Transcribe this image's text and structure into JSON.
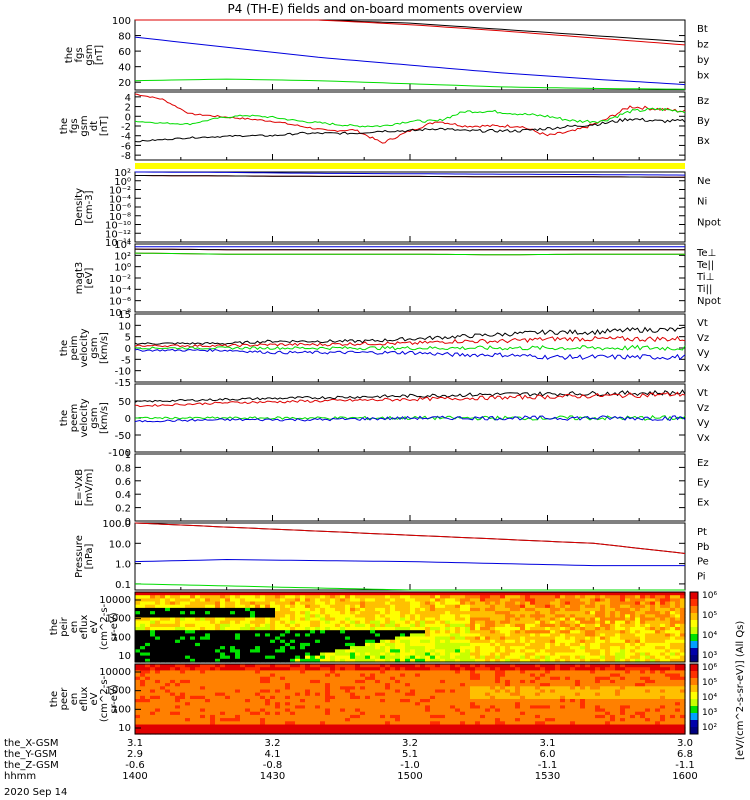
{
  "title": "P4 (TH-E) fields and on-board moments overview",
  "date_label": "2020 Sep 14",
  "colors": {
    "black": "#000000",
    "red": "#dd0000",
    "green": "#00dd00",
    "blue": "#0000dd",
    "yellow": "#ffff00"
  },
  "chart_data": [
    {
      "type": "line",
      "id": "fgs_total",
      "ylabel": [
        "the",
        "fgs",
        "gsm",
        "[nT]"
      ],
      "ylim": [
        10,
        100
      ],
      "yticks": [
        20,
        40,
        60,
        80,
        100
      ],
      "x": [
        0,
        10,
        20,
        30,
        40,
        50,
        60
      ],
      "series": [
        {
          "name": "Bt",
          "color": "#000000",
          "values": [
            100,
            100,
            100,
            96,
            88,
            80,
            72
          ]
        },
        {
          "name": "bz",
          "color": "#dd0000",
          "values": [
            100,
            100,
            100,
            94,
            86,
            77,
            68
          ]
        },
        {
          "name": "by",
          "color": "#00dd00",
          "values": [
            22,
            24,
            22,
            18,
            14,
            12,
            11
          ]
        },
        {
          "name": "bx",
          "color": "#0000dd",
          "values": [
            78,
            65,
            52,
            42,
            32,
            24,
            17
          ]
        }
      ]
    },
    {
      "type": "line",
      "id": "fgs_detrend",
      "ylabel": [
        "the",
        "fgs",
        "gsm",
        "dt",
        "[nT]"
      ],
      "ylim": [
        -9,
        5
      ],
      "yticks": [
        -8,
        -6,
        -4,
        -2,
        0,
        2,
        4
      ],
      "x": [
        0,
        3,
        6,
        9,
        12,
        15,
        18,
        21,
        24,
        27,
        30,
        33,
        36,
        39,
        42,
        45,
        48,
        51,
        54,
        57,
        60
      ],
      "series": [
        {
          "name": "Bz",
          "color": "#dd0000",
          "values": [
            4.6,
            3.5,
            0.5,
            0.0,
            -0.5,
            -1,
            -2,
            -3,
            -2.8,
            -5.5,
            -3,
            -1,
            -2,
            -2,
            -2,
            -4,
            -3,
            -1,
            2,
            1.5,
            1
          ]
        },
        {
          "name": "By",
          "color": "#00dd00",
          "values": [
            -1,
            -1.4,
            -1.6,
            -0.4,
            0.2,
            -0.2,
            -1,
            -1.5,
            -2,
            -2,
            -1,
            -1,
            1,
            1,
            0.5,
            0,
            -1,
            -1,
            1,
            1.5,
            1
          ]
        },
        {
          "name": "Bx",
          "color": "#000000",
          "values": [
            -5.2,
            -4.8,
            -4.4,
            -4.2,
            -4,
            -4,
            -3.5,
            -3.5,
            -3.5,
            -3,
            -3,
            -2.5,
            -3,
            -3,
            -3,
            -2.5,
            -2,
            -1.5,
            -0.5,
            -1,
            -1
          ]
        }
      ]
    },
    {
      "type": "line",
      "id": "density",
      "ylabel": [
        "Density",
        "[cm-3]"
      ],
      "scale": "log",
      "ylim_exp": [
        -14,
        2
      ],
      "yticks_exp": [
        -14,
        -12,
        -10,
        -8,
        -6,
        -4,
        -2,
        0,
        2
      ],
      "x": [
        0,
        10,
        20,
        30,
        40,
        50,
        60
      ],
      "series": [
        {
          "name": "Ne",
          "color": "#dd0000",
          "values_exp": [
            1.2,
            1.1,
            1.0,
            1.0,
            0.9,
            0.9,
            0.8
          ]
        },
        {
          "name": "Ni",
          "color": "#000000",
          "values_exp": [
            1.2,
            1.1,
            1.0,
            1.0,
            0.9,
            0.9,
            0.8
          ]
        },
        {
          "name": "Npot",
          "color": "#0000dd",
          "values_exp": [
            2.0,
            1.9,
            1.7,
            1.6,
            1.5,
            1.4,
            1.3
          ]
        }
      ]
    },
    {
      "type": "line",
      "id": "temperature",
      "ylabel": [
        "magt3",
        "[eV]"
      ],
      "scale": "log",
      "ylim_exp": [
        -8,
        4
      ],
      "yticks_exp": [
        -8,
        -6,
        -4,
        -2,
        0,
        2,
        4
      ],
      "x": [
        0,
        10,
        20,
        30,
        40,
        50,
        60
      ],
      "series": [
        {
          "name": "Te⊥",
          "color": "#dd0000",
          "values_exp": [
            3.1,
            3.0,
            3.0,
            3.0,
            3.0,
            3.0,
            3.0
          ]
        },
        {
          "name": "Te||",
          "color": "#000000",
          "values_exp": [
            3.1,
            3.0,
            3.0,
            3.0,
            3.0,
            3.0,
            3.0
          ]
        },
        {
          "name": "Ti⊥",
          "color": "#dd0000",
          "values_exp": [
            2.4,
            2.2,
            2.2,
            2.2,
            2.1,
            2.2,
            2.2
          ]
        },
        {
          "name": "Ti||",
          "color": "#00dd00",
          "values_exp": [
            2.4,
            2.2,
            2.2,
            2.2,
            2.1,
            2.2,
            2.2
          ]
        },
        {
          "name": "Npot",
          "color": "#0000dd",
          "values_exp": [
            3.5,
            3.5,
            3.5,
            3.5,
            3.5,
            3.5,
            3.5
          ]
        }
      ]
    },
    {
      "type": "line",
      "id": "peim_velocity",
      "ylabel": [
        "the",
        "peim",
        "velocity",
        "gsm",
        "[km/s]"
      ],
      "ylim": [
        -15,
        15
      ],
      "yticks": [
        -15,
        -10,
        -5,
        0,
        5,
        10,
        15
      ],
      "x": [
        0,
        5,
        10,
        15,
        20,
        25,
        30,
        35,
        40,
        45,
        50,
        55,
        60
      ],
      "series": [
        {
          "name": "Vt",
          "color": "#000000",
          "values": [
            2,
            2,
            2,
            3,
            3,
            3,
            4,
            5,
            6,
            7,
            7,
            8,
            8
          ]
        },
        {
          "name": "Vz",
          "color": "#dd0000",
          "values": [
            1,
            1,
            1,
            1.5,
            1.5,
            2,
            2,
            3,
            3,
            4,
            4,
            4,
            4
          ]
        },
        {
          "name": "Vy",
          "color": "#00dd00",
          "values": [
            0,
            0,
            0,
            0,
            0,
            0,
            0,
            0,
            0,
            0,
            0,
            0,
            0
          ]
        },
        {
          "name": "Vx",
          "color": "#0000dd",
          "values": [
            -1,
            -1,
            -1,
            -2,
            -2,
            -2,
            -2,
            -3,
            -3,
            -4,
            -4,
            -4,
            -4
          ]
        }
      ]
    },
    {
      "type": "line",
      "id": "peem_velocity",
      "ylabel": [
        "the",
        "peem",
        "velocity",
        "gsm",
        "[km/s]"
      ],
      "ylim": [
        -100,
        100
      ],
      "yticks": [
        -100,
        -50,
        0,
        50
      ],
      "x": [
        0,
        10,
        20,
        30,
        40,
        50,
        60
      ],
      "series": [
        {
          "name": "Vt",
          "color": "#000000",
          "values": [
            48,
            55,
            60,
            65,
            70,
            72,
            75
          ]
        },
        {
          "name": "Vz",
          "color": "#dd0000",
          "values": [
            35,
            45,
            50,
            55,
            60,
            65,
            70
          ]
        },
        {
          "name": "Vy",
          "color": "#00dd00",
          "values": [
            0,
            0,
            0,
            0,
            0,
            0,
            0
          ]
        },
        {
          "name": "Vx",
          "color": "#0000dd",
          "values": [
            -10,
            -5,
            -5,
            0,
            0,
            0,
            0
          ]
        }
      ]
    },
    {
      "type": "line",
      "id": "efield",
      "ylabel": [
        "E=-VxB",
        "[mV/m]"
      ],
      "ylim": [
        0,
        1
      ],
      "yticks": [
        0,
        0.2,
        0.4,
        0.6,
        0.8,
        1.0
      ],
      "x": [],
      "series": [
        {
          "name": "Ez",
          "color": "#dd0000",
          "values": []
        },
        {
          "name": "Ey",
          "color": "#00dd00",
          "values": []
        },
        {
          "name": "Ex",
          "color": "#0000dd",
          "values": []
        }
      ]
    },
    {
      "type": "line",
      "id": "pressure",
      "ylabel": [
        "Pressure",
        "[nPa]"
      ],
      "scale": "log",
      "ylim_exp": [
        -1.3,
        2
      ],
      "yticks": [
        "0.1",
        "1.0",
        "10.0",
        "100.0"
      ],
      "x": [
        0,
        10,
        20,
        30,
        40,
        50,
        60
      ],
      "series": [
        {
          "name": "Pt",
          "color": "#000000",
          "values_exp": [
            2,
            1.8,
            1.6,
            1.4,
            1.2,
            1.0,
            0.5
          ]
        },
        {
          "name": "Pb",
          "color": "#dd0000",
          "values_exp": [
            2,
            1.8,
            1.6,
            1.4,
            1.2,
            1.0,
            0.5
          ]
        },
        {
          "name": "Pe",
          "color": "#00dd00",
          "values_exp": [
            -1,
            -1.1,
            -1.2,
            -1.3,
            -1.35,
            -1.4,
            -1.4
          ]
        },
        {
          "name": "Pi",
          "color": "#0000dd",
          "values_exp": [
            0.1,
            0.2,
            0.15,
            0.1,
            0.0,
            -0.1,
            -0.1
          ]
        }
      ]
    },
    {
      "type": "heatmap",
      "id": "peir_spec",
      "ylabel": [
        "the",
        "peir",
        "en",
        "eflux",
        "eV",
        "(cm^2-s-",
        "sr-eV)"
      ],
      "yticks": [
        "10",
        "100",
        "1000",
        "10000"
      ]
    },
    {
      "type": "heatmap",
      "id": "peer_spec",
      "ylabel": [
        "the",
        "peer",
        "en",
        "eflux",
        "eV",
        "(cm^2-s-",
        "sr-eV)"
      ],
      "yticks": [
        "10",
        "100",
        "1000",
        "10000"
      ]
    }
  ],
  "colorbar": {
    "label": "[eV/(cm^2-s-sr-eV)] (All Qs)",
    "top_ticks": [
      "10³",
      "10⁴",
      "10⁵",
      "10⁶"
    ],
    "bottom_ticks": [
      "10²",
      "10³",
      "10⁴",
      "10⁵",
      "10⁶"
    ]
  },
  "x_axis": {
    "rows": [
      {
        "label": "the_X-GSM",
        "values": [
          "3.1",
          "3.2",
          "3.2",
          "3.1",
          "3.0"
        ]
      },
      {
        "label": "the_Y-GSM",
        "values": [
          "2.9",
          "4.1",
          "5.1",
          "6.0",
          "6.8"
        ]
      },
      {
        "label": "the_Z-GSM",
        "values": [
          "-0.6",
          "-0.8",
          "-1.0",
          "-1.1",
          "-1.1"
        ]
      },
      {
        "label": "hhmm",
        "values": [
          "1400",
          "1430",
          "1500",
          "1530",
          "1600"
        ]
      }
    ]
  }
}
